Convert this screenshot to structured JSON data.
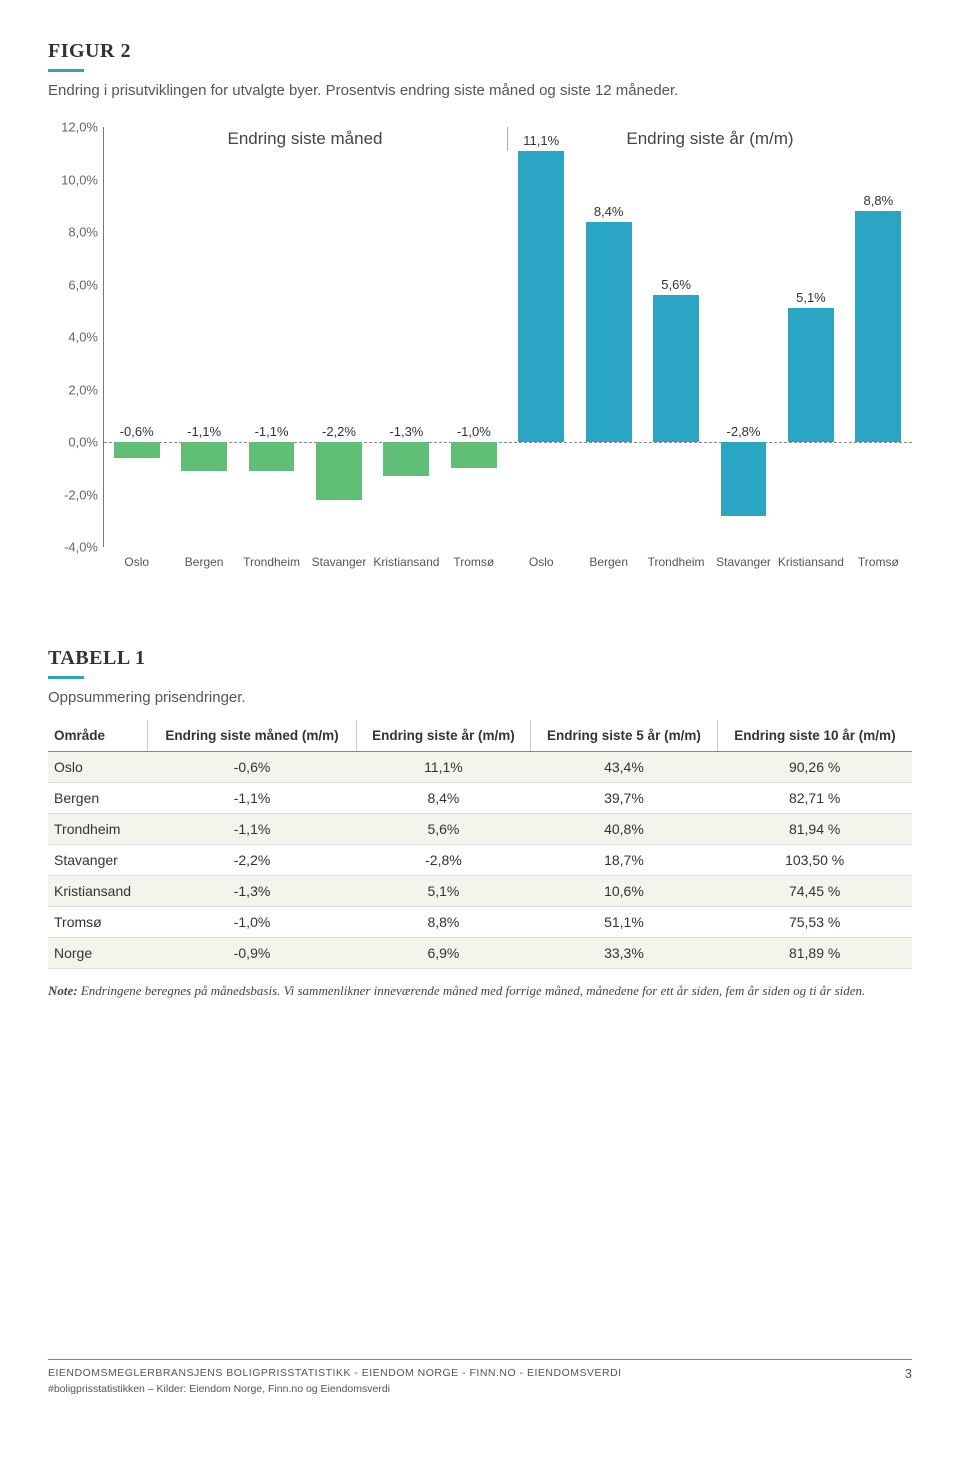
{
  "figure": {
    "title": "FIGUR 2",
    "subtitle": "Endring i prisutviklingen for utvalgte byer. Prosentvis endring siste måned og siste 12 måneder.",
    "underline_color": "#2ba5c4"
  },
  "chart": {
    "type": "bar",
    "headers": [
      "Endring siste måned",
      "Endring siste år (m/m)"
    ],
    "ylim": [
      -4.0,
      12.0
    ],
    "ytick_step": 2.0,
    "yticks": [
      "-4,0%",
      "-2,0%",
      "0,0%",
      "2,0%",
      "4,0%",
      "6,0%",
      "8,0%",
      "10,0%",
      "12,0%"
    ],
    "categories": [
      "Oslo",
      "Bergen",
      "Trondheim",
      "Stavanger",
      "Kristiansand",
      "Tromsø",
      "Oslo",
      "Bergen",
      "Trondheim",
      "Stavanger",
      "Kristiansand",
      "Tromsø"
    ],
    "values": [
      -0.6,
      -1.1,
      -1.1,
      -2.2,
      -1.3,
      -1.0,
      11.1,
      8.4,
      5.6,
      -2.8,
      5.1,
      8.8
    ],
    "value_labels": [
      "-0,6%",
      "-1,1%",
      "-1,1%",
      "-2,2%",
      "-1,3%",
      "-1,0%",
      "11,1%",
      "8,4%",
      "5,6%",
      "-2,8%",
      "5,1%",
      "8,8%"
    ],
    "bar_colors": [
      "#5fbf77",
      "#5fbf77",
      "#5fbf77",
      "#5fbf77",
      "#5fbf77",
      "#5fbf77",
      "#2ba5c4",
      "#2ba5c4",
      "#2ba5c4",
      "#2ba5c4",
      "#2ba5c4",
      "#2ba5c4"
    ],
    "grid_color": "#eeeeee",
    "zero_color": "#888888",
    "axis_color": "#777777",
    "label_fontsize": 13
  },
  "table": {
    "title": "TABELL 1",
    "subtitle": "Oppsummering prisendringer.",
    "columns": [
      "Område",
      "Endring siste måned (m/m)",
      "Endring siste år (m/m)",
      "Endring siste 5 år (m/m)",
      "Endring siste 10 år (m/m)"
    ],
    "rows": [
      [
        "Oslo",
        "-0,6%",
        "11,1%",
        "43,4%",
        "90,26 %"
      ],
      [
        "Bergen",
        "-1,1%",
        "8,4%",
        "39,7%",
        "82,71 %"
      ],
      [
        "Trondheim",
        "-1,1%",
        "5,6%",
        "40,8%",
        "81,94 %"
      ],
      [
        "Stavanger",
        "-2,2%",
        "-2,8%",
        "18,7%",
        "103,50 %"
      ],
      [
        "Kristiansand",
        "-1,3%",
        "5,1%",
        "10,6%",
        "74,45 %"
      ],
      [
        "Tromsø",
        "-1,0%",
        "8,8%",
        "51,1%",
        "75,53 %"
      ],
      [
        "Norge",
        "-0,9%",
        "6,9%",
        "33,3%",
        "81,89 %"
      ]
    ],
    "alt_row_bg": "#f1f5ec"
  },
  "note": {
    "label": "Note:",
    "text": "Endringene beregnes på månedsbasis. Vi sammenlikner inneværende måned med forrige måned, månedene for ett år siden, fem år siden og ti år siden."
  },
  "footer": {
    "line1": "EIENDOMSMEGLERBRANSJENS BOLIGPRISSTATISTIKK - EIENDOM NORGE - FINN.NO - EIENDOMSVERDI",
    "line2": "#boligprisstatistikken – Kilder: Eiendom Norge, Finn.no og Eiendomsverdi",
    "page": "3"
  }
}
